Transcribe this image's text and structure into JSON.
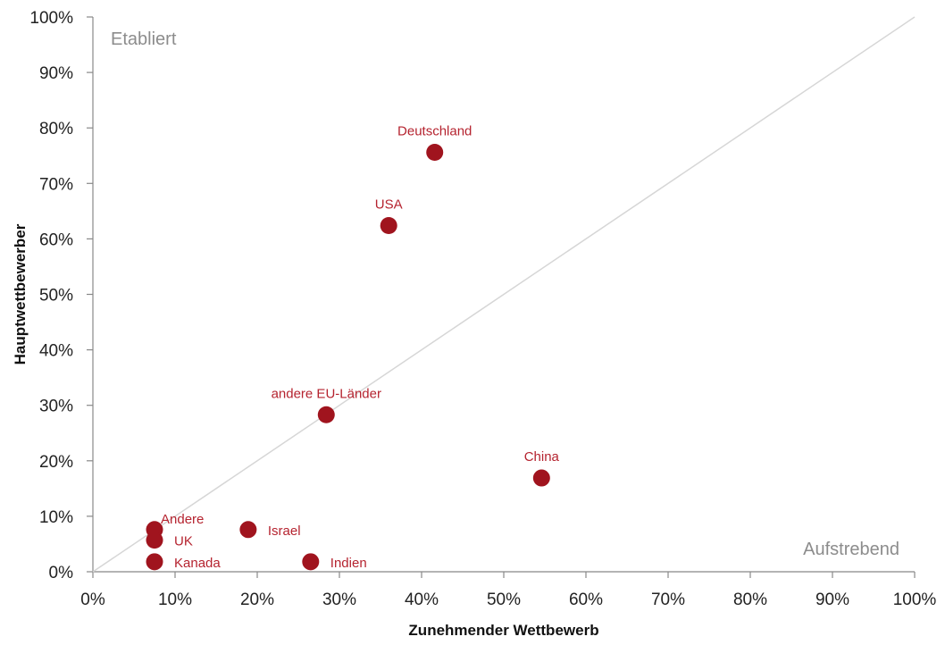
{
  "chart_data": {
    "type": "scatter",
    "xlabel": "Zunehmender Wettbewerb",
    "ylabel": "Hauptwettbewerber",
    "xlim": [
      0,
      100
    ],
    "ylim": [
      0,
      100
    ],
    "x_ticks": [
      "0%",
      "10%",
      "20%",
      "30%",
      "40%",
      "50%",
      "60%",
      "70%",
      "80%",
      "90%",
      "100%"
    ],
    "y_ticks": [
      "0%",
      "10%",
      "20%",
      "30%",
      "40%",
      "50%",
      "60%",
      "70%",
      "80%",
      "90%",
      "100%"
    ],
    "diagonal_line": true,
    "grid": false,
    "quadrant_labels": {
      "top_left": "Etabliert",
      "bottom_right": "Aufstrebend"
    },
    "point_color": "#a0141e",
    "label_color": "#b5232f",
    "points": [
      {
        "label": "Deutschland",
        "x": 41.6,
        "y": 75.6,
        "label_pos": "above"
      },
      {
        "label": "USA",
        "x": 36.0,
        "y": 62.4,
        "label_pos": "above"
      },
      {
        "label": "andere EU-Länder",
        "x": 28.4,
        "y": 28.3,
        "label_pos": "above"
      },
      {
        "label": "China",
        "x": 54.6,
        "y": 16.9,
        "label_pos": "above"
      },
      {
        "label": "Andere",
        "x": 7.5,
        "y": 7.6,
        "label_pos": "above-right"
      },
      {
        "label": "UK",
        "x": 7.5,
        "y": 5.7,
        "label_pos": "right"
      },
      {
        "label": "Kanada",
        "x": 7.5,
        "y": 1.8,
        "label_pos": "right"
      },
      {
        "label": "Israel",
        "x": 18.9,
        "y": 7.6,
        "label_pos": "right"
      },
      {
        "label": "Indien",
        "x": 26.5,
        "y": 1.8,
        "label_pos": "right"
      }
    ]
  }
}
